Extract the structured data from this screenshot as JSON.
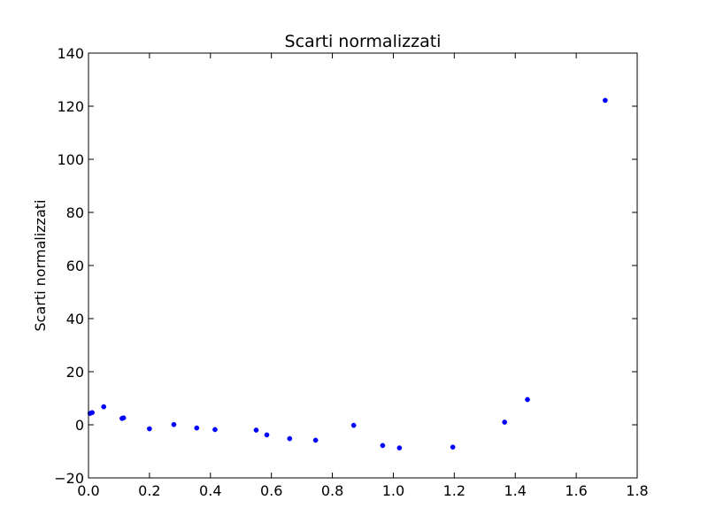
{
  "chart_data": {
    "type": "scatter",
    "title": "Scarti normalizzati",
    "xlabel": "",
    "ylabel": "Scarti normalizzati",
    "xlim": [
      0.0,
      1.8
    ],
    "ylim": [
      -20,
      140
    ],
    "xticks": [
      "0.0",
      "0.2",
      "0.4",
      "0.6",
      "0.8",
      "1.0",
      "1.2",
      "1.4",
      "1.6",
      "1.8"
    ],
    "yticks": [
      "−20",
      "0",
      "20",
      "40",
      "60",
      "80",
      "100",
      "120",
      "140"
    ],
    "grid": false,
    "marker_color": "#0000ff",
    "series": [
      {
        "x": [
          0.005,
          0.012,
          0.05,
          0.11,
          0.115,
          0.2,
          0.28,
          0.355,
          0.415,
          0.55,
          0.585,
          0.66,
          0.745,
          0.87,
          0.965,
          1.02,
          1.195,
          1.365,
          1.44,
          1.695
        ],
        "y": [
          4.3,
          4.6,
          6.8,
          2.4,
          2.6,
          -1.5,
          0.1,
          -1.2,
          -1.8,
          -2.0,
          -3.8,
          -5.2,
          -5.8,
          -0.2,
          -7.8,
          -8.7,
          -8.4,
          1.0,
          9.5,
          122.2
        ]
      }
    ]
  }
}
